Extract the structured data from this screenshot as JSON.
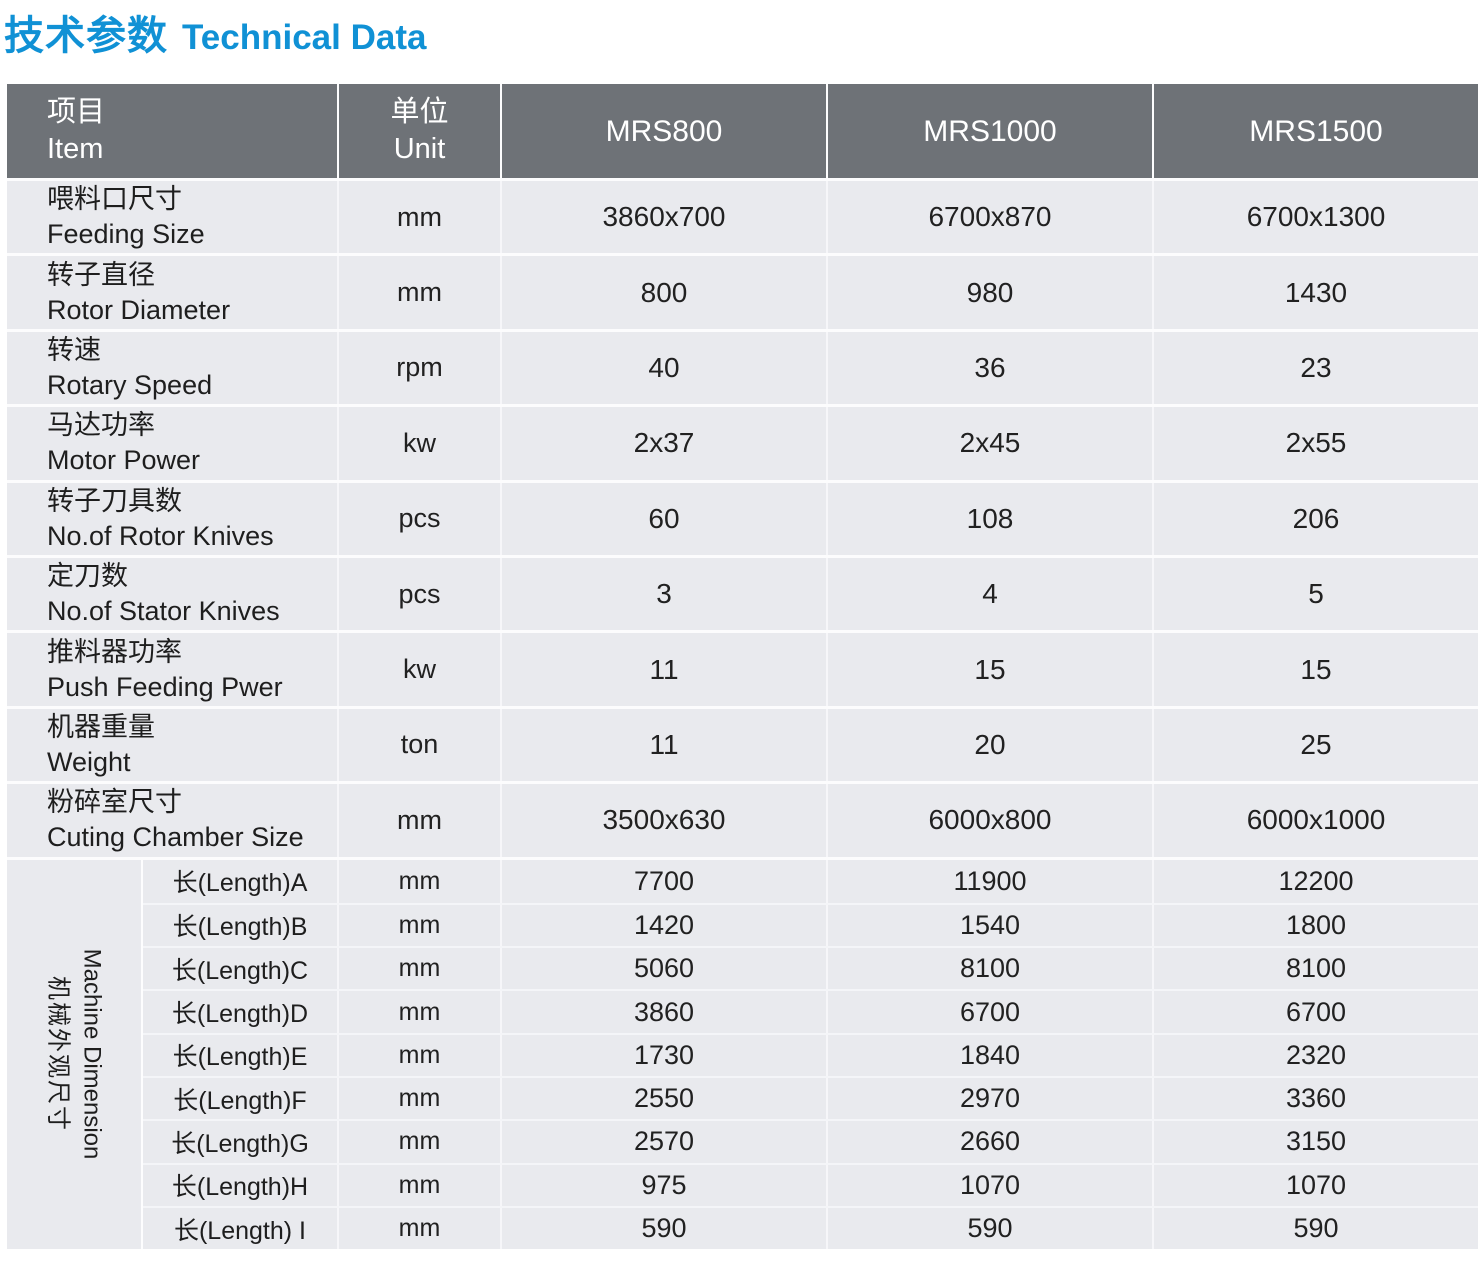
{
  "title": {
    "cn": "技术参数",
    "en": "Technical Data"
  },
  "colors": {
    "accent_blue": "#1091d5",
    "header_gray": "#6e7277",
    "row_gray": "#e9eaee"
  },
  "table": {
    "header": {
      "item_cn": "项目",
      "item_en": "Item",
      "unit_cn": "单位",
      "unit_en": "Unit",
      "models": [
        "MRS800",
        "MRS1000",
        "MRS1500"
      ]
    },
    "rows": [
      {
        "cn": "喂料口尺寸",
        "en": "Feeding Size",
        "unit": "mm",
        "values": [
          "3860x700",
          "6700x870",
          "6700x1300"
        ]
      },
      {
        "cn": "转子直径",
        "en": "Rotor Diameter",
        "unit": "mm",
        "values": [
          "800",
          "980",
          "1430"
        ]
      },
      {
        "cn": "转速",
        "en": "Rotary Speed",
        "unit": "rpm",
        "values": [
          "40",
          "36",
          "23"
        ]
      },
      {
        "cn": "马达功率",
        "en": "Motor Power",
        "unit": "kw",
        "values": [
          "2x37",
          "2x45",
          "2x55"
        ]
      },
      {
        "cn": "转子刀具数",
        "en": "No.of  Rotor Knives",
        "unit": "pcs",
        "values": [
          "60",
          "108",
          "206"
        ]
      },
      {
        "cn": "定刀数",
        "en": "No.of Stator Knives",
        "unit": "pcs",
        "values": [
          "3",
          "4",
          "5"
        ]
      },
      {
        "cn": "推料器功率",
        "en": "Push Feeding Pwer",
        "unit": "kw",
        "values": [
          "11",
          "15",
          "15"
        ]
      },
      {
        "cn": "机器重量",
        "en": "Weight",
        "unit": "ton",
        "values": [
          "11",
          "20",
          "25"
        ]
      },
      {
        "cn": "粉碎室尺寸",
        "en": "Cuting Chamber Size",
        "unit": "mm",
        "values": [
          "3500x630",
          "6000x800",
          "6000x1000"
        ]
      }
    ],
    "dimension_group": {
      "label_en": "Machine Dimension",
      "label_cn": "机械外观尺寸",
      "rows": [
        {
          "label": "长(Length)A",
          "unit": "mm",
          "values": [
            "7700",
            "11900",
            "12200"
          ]
        },
        {
          "label": "长(Length)B",
          "unit": "mm",
          "values": [
            "1420",
            "1540",
            "1800"
          ]
        },
        {
          "label": "长(Length)C",
          "unit": "mm",
          "values": [
            "5060",
            "8100",
            "8100"
          ]
        },
        {
          "label": "长(Length)D",
          "unit": "mm",
          "values": [
            "3860",
            "6700",
            "6700"
          ]
        },
        {
          "label": "长(Length)E",
          "unit": "mm",
          "values": [
            "1730",
            "1840",
            "2320"
          ]
        },
        {
          "label": "长(Length)F",
          "unit": "mm",
          "values": [
            "2550",
            "2970",
            "3360"
          ]
        },
        {
          "label": "长(Length)G",
          "unit": "mm",
          "values": [
            "2570",
            "2660",
            "3150"
          ]
        },
        {
          "label": "长(Length)H",
          "unit": "mm",
          "values": [
            "975",
            "1070",
            "1070"
          ]
        },
        {
          "label": "长(Length) I",
          "unit": "mm",
          "values": [
            "590",
            "590",
            "590"
          ]
        }
      ]
    }
  }
}
